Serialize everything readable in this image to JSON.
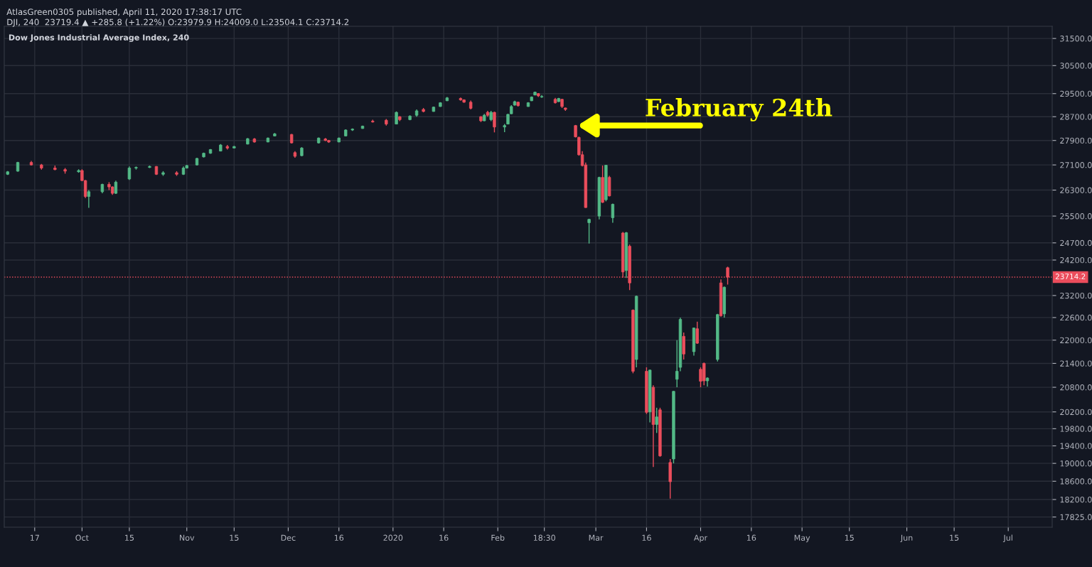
{
  "chart_data": {
    "type": "candlestick",
    "title": "Dow Jones Industrial Average Index, 240",
    "annotations": [
      "AtlasGreen0305 published, April 11, 2020 17:38:17 UTC",
      "DJI, 240  23719.4 ▲ +285.8 (+1.22%) O:23979.9 H:24009.0 L:23504.1 C:23714.2",
      {
        "text": "February 24th",
        "x": "2020-02-24",
        "y": 28400
      }
    ],
    "x": [
      "2019-09-09",
      "2019-09-12",
      "2019-09-16",
      "2019-09-19",
      "2019-09-23",
      "2019-09-26",
      "2019-09-30",
      "2019-10-01",
      "2019-10-02",
      "2019-10-03",
      "2019-10-07",
      "2019-10-09",
      "2019-10-10",
      "2019-10-11",
      "2019-10-15",
      "2019-10-17",
      "2019-10-21",
      "2019-10-23",
      "2019-10-25",
      "2019-10-29",
      "2019-10-31",
      "2019-11-01",
      "2019-11-04",
      "2019-11-06",
      "2019-11-08",
      "2019-11-11",
      "2019-11-13",
      "2019-11-15",
      "2019-11-19",
      "2019-11-21",
      "2019-11-25",
      "2019-11-27",
      "2019-12-02",
      "2019-12-03",
      "2019-12-05",
      "2019-12-10",
      "2019-12-12",
      "2019-12-13",
      "2019-12-16",
      "2019-12-18",
      "2019-12-20",
      "2019-12-23",
      "2019-12-26",
      "2019-12-30",
      "2020-01-02",
      "2020-01-03",
      "2020-01-06",
      "2020-01-08",
      "2020-01-10",
      "2020-01-13",
      "2020-01-15",
      "2020-01-17",
      "2020-01-21",
      "2020-01-22",
      "2020-01-24",
      "2020-01-27",
      "2020-01-28",
      "2020-01-29",
      "2020-01-30",
      "2020-01-31",
      "2020-02-03",
      "2020-02-04",
      "2020-02-05",
      "2020-02-06",
      "2020-02-07",
      "2020-02-10",
      "2020-02-11",
      "2020-02-12",
      "2020-02-13",
      "2020-02-14",
      "2020-02-18",
      "2020-02-19",
      "2020-02-20",
      "2020-02-21",
      "2020-02-24",
      "2020-02-25",
      "2020-02-26",
      "2020-02-27",
      "2020-02-28",
      "2020-03-02",
      "2020-03-03",
      "2020-03-04",
      "2020-03-05",
      "2020-03-06",
      "2020-03-09",
      "2020-03-10",
      "2020-03-11",
      "2020-03-12",
      "2020-03-13",
      "2020-03-16",
      "2020-03-17",
      "2020-03-18",
      "2020-03-19",
      "2020-03-20",
      "2020-03-23",
      "2020-03-24",
      "2020-03-25",
      "2020-03-26",
      "2020-03-27",
      "2020-03-30",
      "2020-03-31",
      "2020-04-01",
      "2020-04-02",
      "2020-04-03",
      "2020-04-06",
      "2020-04-07",
      "2020-04-08",
      "2020-04-09"
    ],
    "ohlc": [
      [
        26800,
        26900,
        26780,
        26880
      ],
      [
        26900,
        27200,
        26880,
        27180
      ],
      [
        27180,
        27230,
        27080,
        27100
      ],
      [
        27100,
        27130,
        26950,
        27000
      ],
      [
        27000,
        27080,
        26930,
        26950
      ],
      [
        26950,
        27000,
        26820,
        26900
      ],
      [
        26880,
        26960,
        26850,
        26920
      ],
      [
        26920,
        26960,
        26580,
        26600
      ],
      [
        26600,
        26620,
        26050,
        26100
      ],
      [
        26100,
        26300,
        25750,
        26250
      ],
      [
        26250,
        26500,
        26200,
        26480
      ],
      [
        26480,
        26550,
        26300,
        26400
      ],
      [
        26400,
        26420,
        26150,
        26200
      ],
      [
        26200,
        26600,
        26180,
        26550
      ],
      [
        26650,
        27050,
        26620,
        27000
      ],
      [
        27000,
        27050,
        26950,
        27020
      ],
      [
        27020,
        27080,
        27000,
        27050
      ],
      [
        27050,
        27060,
        26780,
        26800
      ],
      [
        26800,
        26900,
        26750,
        26850
      ],
      [
        26850,
        26900,
        26750,
        26800
      ],
      [
        26800,
        27050,
        26780,
        27000
      ],
      [
        27000,
        27100,
        26980,
        27080
      ],
      [
        27100,
        27330,
        27080,
        27310
      ],
      [
        27360,
        27500,
        27340,
        27480
      ],
      [
        27480,
        27620,
        27460,
        27600
      ],
      [
        27550,
        27780,
        27540,
        27750
      ],
      [
        27700,
        27750,
        27600,
        27650
      ],
      [
        27650,
        27720,
        27640,
        27700
      ],
      [
        27780,
        27980,
        27770,
        27960
      ],
      [
        27950,
        27980,
        27830,
        27850
      ],
      [
        27850,
        28000,
        27840,
        27980
      ],
      [
        28050,
        28150,
        28040,
        28120
      ],
      [
        28100,
        28120,
        27800,
        27820
      ],
      [
        27500,
        27550,
        27330,
        27380
      ],
      [
        27400,
        27680,
        27380,
        27650
      ],
      [
        27820,
        28000,
        27800,
        27980
      ],
      [
        27950,
        27980,
        27880,
        27900
      ],
      [
        27900,
        27920,
        27820,
        27850
      ],
      [
        27850,
        28000,
        27840,
        27980
      ],
      [
        28050,
        28270,
        28040,
        28250
      ],
      [
        28250,
        28300,
        28220,
        28280
      ],
      [
        28300,
        28400,
        28290,
        28380
      ],
      [
        28550,
        28600,
        28500,
        28520
      ],
      [
        28580,
        28620,
        28400,
        28450
      ],
      [
        28450,
        28880,
        28440,
        28850
      ],
      [
        28700,
        28720,
        28550,
        28600
      ],
      [
        28600,
        28750,
        28580,
        28720
      ],
      [
        28750,
        28950,
        28700,
        28900
      ],
      [
        28950,
        29000,
        28850,
        28880
      ],
      [
        28880,
        29050,
        28870,
        29030
      ],
      [
        29050,
        29200,
        29040,
        29180
      ],
      [
        29250,
        29380,
        29240,
        29350
      ],
      [
        29330,
        29360,
        29250,
        29280
      ],
      [
        29280,
        29300,
        29180,
        29200
      ],
      [
        29200,
        29260,
        28950,
        28990
      ],
      [
        28700,
        28720,
        28520,
        28560
      ],
      [
        28560,
        28800,
        28550,
        28750
      ],
      [
        28850,
        28900,
        28700,
        28750
      ],
      [
        28600,
        28900,
        28550,
        28850
      ],
      [
        28850,
        28870,
        28170,
        28350
      ],
      [
        28350,
        28450,
        28180,
        28400
      ],
      [
        28450,
        28800,
        28440,
        28780
      ],
      [
        28800,
        29100,
        28790,
        29050
      ],
      [
        29100,
        29250,
        29080,
        29220
      ],
      [
        29200,
        29220,
        29050,
        29080
      ],
      [
        29050,
        29200,
        29040,
        29180
      ],
      [
        29250,
        29400,
        29240,
        29380
      ],
      [
        29450,
        29570,
        29440,
        29550
      ],
      [
        29500,
        29520,
        29380,
        29420
      ],
      [
        29380,
        29450,
        29350,
        29400
      ],
      [
        29300,
        29350,
        29150,
        29180
      ],
      [
        29220,
        29350,
        29210,
        29330
      ],
      [
        29300,
        29320,
        29000,
        29050
      ],
      [
        29000,
        29010,
        28900,
        28950
      ],
      [
        28400,
        28420,
        28000,
        28020
      ],
      [
        28000,
        28030,
        27400,
        27430
      ],
      [
        27430,
        27550,
        27050,
        27080
      ],
      [
        27100,
        27180,
        25750,
        25760
      ],
      [
        25300,
        25420,
        24680,
        25400
      ],
      [
        25500,
        26720,
        25400,
        26700
      ],
      [
        26700,
        27080,
        25900,
        25920
      ],
      [
        26000,
        27100,
        25950,
        27090
      ],
      [
        26700,
        26750,
        26100,
        26120
      ],
      [
        25450,
        25880,
        25300,
        25860
      ],
      [
        24990,
        25020,
        23700,
        23860
      ],
      [
        23900,
        25020,
        23690,
        25000
      ],
      [
        24600,
        24650,
        23350,
        23550
      ],
      [
        22800,
        22820,
        21150,
        21200
      ],
      [
        21500,
        23200,
        21300,
        23180
      ],
      [
        21200,
        21300,
        20150,
        20190
      ],
      [
        20200,
        21240,
        19950,
        21230
      ],
      [
        20800,
        20850,
        18920,
        19900
      ],
      [
        19900,
        20300,
        19700,
        20080
      ],
      [
        20250,
        20300,
        19150,
        19170
      ],
      [
        19020,
        19100,
        18220,
        18590
      ],
      [
        19100,
        20710,
        19000,
        20700
      ],
      [
        21000,
        22000,
        20800,
        21200
      ],
      [
        21300,
        22600,
        21200,
        22550
      ],
      [
        22100,
        22200,
        21500,
        21640
      ],
      [
        21700,
        22330,
        21600,
        22320
      ],
      [
        22300,
        22490,
        21900,
        21920
      ],
      [
        21250,
        21300,
        20800,
        20950
      ],
      [
        21400,
        21420,
        20850,
        20960
      ],
      [
        20960,
        21050,
        20820,
        21030
      ],
      [
        21500,
        22700,
        21450,
        22680
      ],
      [
        23550,
        23650,
        22620,
        22650
      ],
      [
        22700,
        23450,
        22600,
        23430
      ],
      [
        23979.9,
        24009.0,
        23504.1,
        23714.2
      ]
    ],
    "colors": [
      "#53b987",
      "#53b987",
      "#eb4d5c",
      "#eb4d5c",
      "#eb4d5c",
      "#eb4d5c",
      "#53b987",
      "#eb4d5c",
      "#eb4d5c",
      "#53b987",
      "#53b987",
      "#eb4d5c",
      "#eb4d5c",
      "#53b987",
      "#53b987",
      "#53b987",
      "#53b987",
      "#eb4d5c",
      "#53b987",
      "#eb4d5c",
      "#53b987",
      "#53b987",
      "#53b987",
      "#53b987",
      "#53b987",
      "#53b987",
      "#eb4d5c",
      "#53b987",
      "#53b987",
      "#eb4d5c",
      "#53b987",
      "#53b987",
      "#eb4d5c",
      "#eb4d5c",
      "#53b987",
      "#53b987",
      "#eb4d5c",
      "#eb4d5c",
      "#53b987",
      "#53b987",
      "#53b987",
      "#53b987",
      "#eb4d5c",
      "#eb4d5c",
      "#53b987",
      "#eb4d5c",
      "#53b987",
      "#53b987",
      "#eb4d5c",
      "#53b987",
      "#53b987",
      "#53b987",
      "#eb4d5c",
      "#eb4d5c",
      "#eb4d5c",
      "#eb4d5c",
      "#53b987",
      "#eb4d5c",
      "#53b987",
      "#eb4d5c",
      "#53b987",
      "#53b987",
      "#53b987",
      "#53b987",
      "#eb4d5c",
      "#53b987",
      "#53b987",
      "#53b987",
      "#eb4d5c",
      "#53b987",
      "#eb4d5c",
      "#53b987",
      "#eb4d5c",
      "#eb4d5c",
      "#eb4d5c",
      "#eb4d5c",
      "#eb4d5c",
      "#eb4d5c",
      "#53b987",
      "#53b987",
      "#eb4d5c",
      "#53b987",
      "#eb4d5c",
      "#53b987",
      "#eb4d5c",
      "#53b987",
      "#eb4d5c",
      "#eb4d5c",
      "#53b987",
      "#eb4d5c",
      "#53b987",
      "#eb4d5c",
      "#53b987",
      "#eb4d5c",
      "#eb4d5c",
      "#53b987",
      "#53b987",
      "#53b987",
      "#eb4d5c",
      "#53b987",
      "#eb4d5c",
      "#eb4d5c",
      "#eb4d5c",
      "#53b987",
      "#53b987",
      "#eb4d5c",
      "#53b987",
      "#eb4d5c"
    ],
    "log": true,
    "grid": true,
    "xlim": [
      "2019-09-08",
      "2020-07-14"
    ],
    "xticks": [
      {
        "value": "2019-09-17",
        "label": "17"
      },
      {
        "value": "2019-10-01",
        "label": "Oct"
      },
      {
        "value": "2019-10-15",
        "label": "15"
      },
      {
        "value": "2019-11-01",
        "label": "Nov"
      },
      {
        "value": "2019-11-15",
        "label": "15"
      },
      {
        "value": "2019-12-01",
        "label": "Dec"
      },
      {
        "value": "2019-12-16",
        "label": "16"
      },
      {
        "value": "2020-01-01",
        "label": "2020"
      },
      {
        "value": "2020-01-16",
        "label": "16"
      },
      {
        "value": "2020-02-01",
        "label": "Feb"
      },
      {
        "value": "2020-02-14T18:30",
        "label": "18:30"
      },
      {
        "value": "2020-03-01",
        "label": "Mar"
      },
      {
        "value": "2020-03-16",
        "label": "16"
      },
      {
        "value": "2020-04-01",
        "label": "Apr"
      },
      {
        "value": "2020-04-16",
        "label": "16"
      },
      {
        "value": "2020-05-01",
        "label": "May"
      },
      {
        "value": "2020-05-15",
        "label": "15"
      },
      {
        "value": "2020-06-01",
        "label": "Jun"
      },
      {
        "value": "2020-06-15",
        "label": "15"
      },
      {
        "value": "2020-07-01",
        "label": "Jul"
      }
    ],
    "ylim": [
      17610,
      31960
    ],
    "yticks": [
      {
        "value": 17825,
        "label": "17825.0"
      },
      {
        "value": 18200,
        "label": "18200.0"
      },
      {
        "value": 18600,
        "label": "18600.0"
      },
      {
        "value": 19000,
        "label": "19000.0"
      },
      {
        "value": 19400,
        "label": "19400.0"
      },
      {
        "value": 19800,
        "label": "19800.0"
      },
      {
        "value": 20200,
        "label": "20200.0"
      },
      {
        "value": 20800,
        "label": "20800.0"
      },
      {
        "value": 21400,
        "label": "21400.0"
      },
      {
        "value": 22000,
        "label": "22000.0"
      },
      {
        "value": 22600,
        "label": "22600.0"
      },
      {
        "value": 23200,
        "label": "23200.0"
      },
      {
        "value": 24200,
        "label": "24200.0"
      },
      {
        "value": 24700,
        "label": "24700.0"
      },
      {
        "value": 25500,
        "label": "25500.0"
      },
      {
        "value": 26300,
        "label": "26300.0"
      },
      {
        "value": 27100,
        "label": "27100.0"
      },
      {
        "value": 27900,
        "label": "27900.0"
      },
      {
        "value": 28700,
        "label": "28700.0"
      },
      {
        "value": 29500,
        "label": "29500.0"
      },
      {
        "value": 30500,
        "label": "30500.0"
      },
      {
        "value": 31500,
        "label": "31500.0"
      }
    ],
    "ref_lines": [
      {
        "axis": "y",
        "value": 23714.2,
        "label": "23714.2",
        "color": "#eb4d5c",
        "line_style": "dotted"
      }
    ]
  }
}
